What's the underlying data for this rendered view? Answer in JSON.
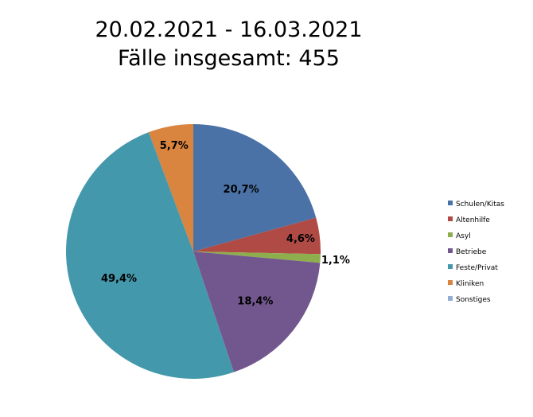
{
  "chart_data": {
    "type": "pie",
    "title_lines": [
      "20.02.2021 - 16.03.2021",
      "Fälle insgesamt: 455"
    ],
    "legend_position": "right",
    "slices": [
      {
        "name": "Schulen/Kitas",
        "value": 20.7,
        "label": "20,7%",
        "color": "#4a72a7"
      },
      {
        "name": "Altenhilfe",
        "value": 4.6,
        "label": "4,6%",
        "color": "#b04a45"
      },
      {
        "name": "Asyl",
        "value": 1.1,
        "label": "1,1%",
        "color": "#8ead4c"
      },
      {
        "name": "Betriebe",
        "value": 18.4,
        "label": "18,4%",
        "color": "#72578f"
      },
      {
        "name": "Feste/Privat",
        "value": 49.4,
        "label": "49,4%",
        "color": "#4498ac"
      },
      {
        "name": "Kliniken",
        "value": 5.7,
        "label": "5,7%",
        "color": "#d9843f"
      },
      {
        "name": "Sonstiges",
        "value": 0,
        "label": "",
        "color": "#93aed3"
      }
    ]
  }
}
